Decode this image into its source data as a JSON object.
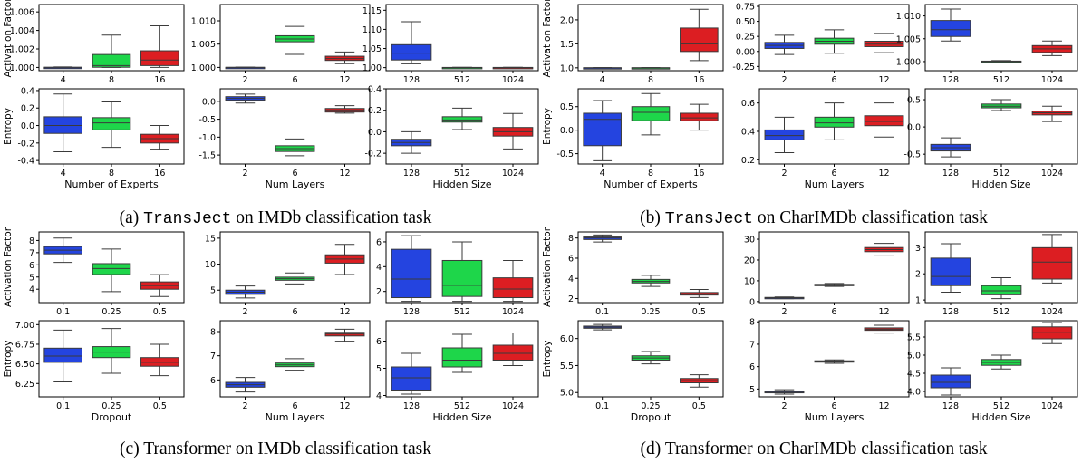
{
  "colors": {
    "c1": "#2444e0",
    "c2": "#1ed64a",
    "c3": "#dc1e22"
  },
  "captions": [
    {
      "prefix": "(a) ",
      "model": "TransJect",
      "suffix": " on IMDb classification task"
    },
    {
      "prefix": "(b) ",
      "model": "TransJect",
      "suffix": " on CharIMDb classification task"
    },
    {
      "prefix": "(c) ",
      "model": "",
      "suffix": "Transformer on IMDb classification task"
    },
    {
      "prefix": "(d) ",
      "model": "",
      "suffix": "Transformer on CharIMDb classification task"
    }
  ],
  "chart_data": [
    {
      "type": "box",
      "group": "a",
      "row": "top",
      "ylabel": "Activation Factor",
      "xlabel": "",
      "categories": [
        "4",
        "8",
        "16"
      ],
      "ylim": [
        0.99965,
        1.0068
      ],
      "yticks": [
        "1.000",
        "1.002",
        "1.004",
        "1.006"
      ],
      "boxes": [
        {
          "q1": 1.0,
          "med": 1.0,
          "q3": 1.00002,
          "lo": 1.0,
          "hi": 1.00005
        },
        {
          "q1": 1.00002,
          "med": 1.0002,
          "q3": 1.0014,
          "lo": 1.0,
          "hi": 1.0035
        },
        {
          "q1": 1.0002,
          "med": 1.0008,
          "q3": 1.0018,
          "lo": 1.0,
          "hi": 1.0045
        }
      ]
    },
    {
      "type": "box",
      "group": "a",
      "row": "top",
      "ylabel": "",
      "xlabel": "",
      "categories": [
        "2",
        "6",
        "12"
      ],
      "ylim": [
        0.9993,
        1.0135
      ],
      "yticks": [
        "1.000",
        "1.005",
        "1.010"
      ],
      "boxes": [
        {
          "q1": 1.0,
          "med": 1.0,
          "q3": 1.00002,
          "lo": 1.0,
          "hi": 1.00005
        },
        {
          "q1": 1.0055,
          "med": 1.0061,
          "q3": 1.0068,
          "lo": 1.0028,
          "hi": 1.0088
        },
        {
          "q1": 1.0015,
          "med": 1.0019,
          "q3": 1.0024,
          "lo": 1.0008,
          "hi": 1.0033
        }
      ]
    },
    {
      "type": "box",
      "group": "a",
      "row": "top",
      "ylabel": "",
      "xlabel": "",
      "categories": [
        "128",
        "512",
        "1024"
      ],
      "ylim": [
        0.992,
        1.165
      ],
      "yticks": [
        "1.00",
        "1.05",
        "1.10",
        "1.15"
      ],
      "boxes": [
        {
          "q1": 1.02,
          "med": 1.038,
          "q3": 1.06,
          "lo": 1.01,
          "hi": 1.12
        },
        {
          "q1": 1.0,
          "med": 1.0,
          "q3": 1.0005,
          "lo": 1.0,
          "hi": 1.001
        },
        {
          "q1": 1.0,
          "med": 1.0,
          "q3": 1.0005,
          "lo": 1.0,
          "hi": 1.001
        }
      ]
    },
    {
      "type": "box",
      "group": "a",
      "row": "bottom",
      "ylabel": "Entropy",
      "xlabel": "Number of Experts",
      "categories": [
        "4",
        "8",
        "16"
      ],
      "ylim": [
        -0.44,
        0.42
      ],
      "yticks": [
        "-0.4",
        "-0.2",
        "0.0",
        "0.2",
        "0.4"
      ],
      "boxes": [
        {
          "q1": -0.09,
          "med": 0.0,
          "q3": 0.1,
          "lo": -0.3,
          "hi": 0.36
        },
        {
          "q1": -0.05,
          "med": 0.03,
          "q3": 0.09,
          "lo": -0.25,
          "hi": 0.27
        },
        {
          "q1": -0.2,
          "med": -0.15,
          "q3": -0.1,
          "lo": -0.27,
          "hi": 0.0
        }
      ]
    },
    {
      "type": "box",
      "group": "a",
      "row": "bottom",
      "ylabel": "",
      "xlabel": "Num Layers",
      "categories": [
        "2",
        "6",
        "12"
      ],
      "ylim": [
        -1.75,
        0.35
      ],
      "yticks": [
        "-1.5",
        "-1.0",
        "-0.5",
        "0.0"
      ],
      "boxes": [
        {
          "q1": 0.03,
          "med": 0.08,
          "q3": 0.13,
          "lo": -0.05,
          "hi": 0.2
        },
        {
          "q1": -1.4,
          "med": -1.32,
          "q3": -1.24,
          "lo": -1.52,
          "hi": -1.05
        },
        {
          "q1": -0.3,
          "med": -0.25,
          "q3": -0.2,
          "lo": -0.33,
          "hi": -0.12
        }
      ]
    },
    {
      "type": "box",
      "group": "a",
      "row": "bottom",
      "ylabel": "",
      "xlabel": "Hidden Size",
      "categories": [
        "128",
        "512",
        "1024"
      ],
      "ylim": [
        -0.3,
        0.4
      ],
      "yticks": [
        "-0.2",
        "0.0",
        "0.2",
        "0.4"
      ],
      "boxes": [
        {
          "q1": -0.13,
          "med": -0.1,
          "q3": -0.07,
          "lo": -0.2,
          "hi": 0.0
        },
        {
          "q1": 0.09,
          "med": 0.11,
          "q3": 0.14,
          "lo": 0.02,
          "hi": 0.22
        },
        {
          "q1": -0.04,
          "med": 0.0,
          "q3": 0.04,
          "lo": -0.16,
          "hi": 0.17
        }
      ]
    },
    {
      "type": "box",
      "group": "b",
      "row": "top",
      "ylabel": "Activation Factor",
      "xlabel": "",
      "categories": [
        "4",
        "8",
        "16"
      ],
      "ylim": [
        0.94,
        2.32
      ],
      "yticks": [
        "1.0",
        "1.5",
        "2.0"
      ],
      "boxes": [
        {
          "q1": 1.0,
          "med": 1.0,
          "q3": 1.002,
          "lo": 1.0,
          "hi": 1.004
        },
        {
          "q1": 1.0,
          "med": 1.0,
          "q3": 1.002,
          "lo": 1.0,
          "hi": 1.004
        },
        {
          "q1": 1.34,
          "med": 1.5,
          "q3": 1.83,
          "lo": 1.15,
          "hi": 2.22
        }
      ]
    },
    {
      "type": "box",
      "group": "b",
      "row": "top",
      "ylabel": "",
      "xlabel": "",
      "categories": [
        "2",
        "6",
        "12"
      ],
      "ylim": [
        -0.32,
        0.78
      ],
      "yticks": [
        "-0.25",
        "0.00",
        "0.25",
        "0.50",
        "0.75"
      ],
      "boxes": [
        {
          "q1": 0.05,
          "med": 0.1,
          "q3": 0.15,
          "lo": -0.05,
          "hi": 0.27
        },
        {
          "q1": 0.12,
          "med": 0.17,
          "q3": 0.22,
          "lo": -0.03,
          "hi": 0.36
        },
        {
          "q1": 0.08,
          "med": 0.12,
          "q3": 0.17,
          "lo": -0.02,
          "hi": 0.3
        }
      ]
    },
    {
      "type": "box",
      "group": "b",
      "row": "top",
      "ylabel": "",
      "xlabel": "",
      "categories": [
        "128",
        "512",
        "1024"
      ],
      "ylim": [
        0.998,
        1.0125
      ],
      "yticks": [
        "1.000",
        "1.005",
        "1.010"
      ],
      "boxes": [
        {
          "q1": 1.0055,
          "med": 1.007,
          "q3": 1.009,
          "lo": 1.0045,
          "hi": 1.0115
        },
        {
          "q1": 1.0,
          "med": 1.0,
          "q3": 1.0001,
          "lo": 1.0,
          "hi": 1.0002
        },
        {
          "q1": 1.002,
          "med": 1.0028,
          "q3": 1.0035,
          "lo": 1.0013,
          "hi": 1.0045
        }
      ]
    },
    {
      "type": "box",
      "group": "b",
      "row": "bottom",
      "ylabel": "Entropy",
      "xlabel": "Number of Experts",
      "categories": [
        "4",
        "8",
        "16"
      ],
      "ylim": [
        -0.72,
        0.88
      ],
      "yticks": [
        "-0.5",
        "0.0",
        "0.5"
      ],
      "boxes": [
        {
          "q1": -0.33,
          "med": 0.23,
          "q3": 0.36,
          "lo": -0.65,
          "hi": 0.63
        },
        {
          "q1": 0.2,
          "med": 0.38,
          "q3": 0.5,
          "lo": -0.1,
          "hi": 0.78
        },
        {
          "q1": 0.2,
          "med": 0.26,
          "q3": 0.36,
          "lo": 0.0,
          "hi": 0.55
        }
      ]
    },
    {
      "type": "box",
      "group": "b",
      "row": "bottom",
      "ylabel": "",
      "xlabel": "Num Layers",
      "categories": [
        "2",
        "6",
        "12"
      ],
      "ylim": [
        0.17,
        0.7
      ],
      "yticks": [
        "0.2",
        "0.4",
        "0.6"
      ],
      "boxes": [
        {
          "q1": 0.34,
          "med": 0.37,
          "q3": 0.41,
          "lo": 0.25,
          "hi": 0.5
        },
        {
          "q1": 0.43,
          "med": 0.46,
          "q3": 0.5,
          "lo": 0.34,
          "hi": 0.6
        },
        {
          "q1": 0.44,
          "med": 0.47,
          "q3": 0.51,
          "lo": 0.36,
          "hi": 0.6
        }
      ]
    },
    {
      "type": "box",
      "group": "b",
      "row": "bottom",
      "ylabel": "",
      "xlabel": "Hidden Size",
      "categories": [
        "128",
        "512",
        "1024"
      ],
      "ylim": [
        -0.68,
        0.7
      ],
      "yticks": [
        "-0.5",
        "0.0",
        "0.5"
      ],
      "boxes": [
        {
          "q1": -0.44,
          "med": -0.38,
          "q3": -0.32,
          "lo": -0.55,
          "hi": -0.2
        },
        {
          "q1": 0.35,
          "med": 0.38,
          "q3": 0.42,
          "lo": 0.3,
          "hi": 0.5
        },
        {
          "q1": 0.22,
          "med": 0.26,
          "q3": 0.29,
          "lo": 0.1,
          "hi": 0.38
        }
      ]
    },
    {
      "type": "box",
      "group": "c",
      "row": "top",
      "ylabel": "Activation Factor",
      "xlabel": "",
      "categories": [
        "0.1",
        "0.25",
        "0.5"
      ],
      "ylim": [
        2.9,
        8.7
      ],
      "yticks": [
        "4",
        "5",
        "6",
        "7",
        "8"
      ],
      "boxes": [
        {
          "q1": 6.9,
          "med": 7.2,
          "q3": 7.5,
          "lo": 6.2,
          "hi": 8.2
        },
        {
          "q1": 5.2,
          "med": 5.7,
          "q3": 6.1,
          "lo": 3.8,
          "hi": 7.3
        },
        {
          "q1": 4.0,
          "med": 4.3,
          "q3": 4.6,
          "lo": 3.4,
          "hi": 5.2
        }
      ]
    },
    {
      "type": "box",
      "group": "c",
      "row": "top",
      "ylabel": "",
      "xlabel": "",
      "categories": [
        "2",
        "6",
        "12"
      ],
      "ylim": [
        2.6,
        16.2
      ],
      "yticks": [
        "5",
        "10",
        "15"
      ],
      "boxes": [
        {
          "q1": 4.2,
          "med": 4.6,
          "q3": 5.0,
          "lo": 3.5,
          "hi": 5.8
        },
        {
          "q1": 6.9,
          "med": 7.2,
          "q3": 7.5,
          "lo": 6.2,
          "hi": 8.3
        },
        {
          "q1": 10.2,
          "med": 11.0,
          "q3": 11.8,
          "lo": 8.0,
          "hi": 13.8
        }
      ]
    },
    {
      "type": "box",
      "group": "c",
      "row": "top",
      "ylabel": "",
      "xlabel": "",
      "categories": [
        "128",
        "512",
        "1024"
      ],
      "ylim": [
        1.1,
        6.8
      ],
      "yticks": [
        "2",
        "4",
        "6"
      ],
      "boxes": [
        {
          "q1": 1.5,
          "med": 3.0,
          "q3": 5.4,
          "lo": 1.2,
          "hi": 6.5
        },
        {
          "q1": 1.6,
          "med": 2.5,
          "q3": 4.5,
          "lo": 1.2,
          "hi": 6.0
        },
        {
          "q1": 1.5,
          "med": 2.2,
          "q3": 3.1,
          "lo": 1.2,
          "hi": 4.5
        }
      ]
    },
    {
      "type": "box",
      "group": "c",
      "row": "bottom",
      "ylabel": "Entropy",
      "xlabel": "Dropout",
      "categories": [
        "0.1",
        "0.25",
        "0.5"
      ],
      "ylim": [
        6.08,
        7.05
      ],
      "yticks": [
        "6.25",
        "6.50",
        "6.75",
        "7.00"
      ],
      "boxes": [
        {
          "q1": 6.52,
          "med": 6.6,
          "q3": 6.7,
          "lo": 6.27,
          "hi": 6.93
        },
        {
          "q1": 6.58,
          "med": 6.65,
          "q3": 6.72,
          "lo": 6.38,
          "hi": 6.95
        },
        {
          "q1": 6.47,
          "med": 6.52,
          "q3": 6.58,
          "lo": 6.35,
          "hi": 6.75
        }
      ]
    },
    {
      "type": "box",
      "group": "c",
      "row": "bottom",
      "ylabel": "",
      "xlabel": "Num Layers",
      "categories": [
        "2",
        "6",
        "12"
      ],
      "ylim": [
        5.3,
        8.45
      ],
      "yticks": [
        "6",
        "7",
        "8"
      ],
      "boxes": [
        {
          "q1": 5.7,
          "med": 5.8,
          "q3": 5.9,
          "lo": 5.5,
          "hi": 6.1
        },
        {
          "q1": 6.55,
          "med": 6.62,
          "q3": 6.7,
          "lo": 6.4,
          "hi": 6.88
        },
        {
          "q1": 7.82,
          "med": 7.9,
          "q3": 7.97,
          "lo": 7.6,
          "hi": 8.1
        }
      ]
    },
    {
      "type": "box",
      "group": "c",
      "row": "bottom",
      "ylabel": "",
      "xlabel": "Hidden Size",
      "categories": [
        "128",
        "512",
        "1024"
      ],
      "ylim": [
        3.95,
        6.75
      ],
      "yticks": [
        "4",
        "5",
        "6"
      ],
      "boxes": [
        {
          "q1": 4.2,
          "med": 4.65,
          "q3": 5.05,
          "lo": 4.05,
          "hi": 5.55
        },
        {
          "q1": 5.05,
          "med": 5.3,
          "q3": 5.75,
          "lo": 4.85,
          "hi": 6.25
        },
        {
          "q1": 5.3,
          "med": 5.55,
          "q3": 5.85,
          "lo": 5.1,
          "hi": 6.3
        }
      ]
    },
    {
      "type": "box",
      "group": "d",
      "row": "top",
      "ylabel": "Activation Factor",
      "xlabel": "",
      "categories": [
        "0.1",
        "0.25",
        "0.5"
      ],
      "ylim": [
        1.6,
        8.6
      ],
      "yticks": [
        "2",
        "4",
        "6",
        "8"
      ],
      "boxes": [
        {
          "q1": 7.85,
          "med": 8.0,
          "q3": 8.1,
          "lo": 7.6,
          "hi": 8.3
        },
        {
          "q1": 3.55,
          "med": 3.7,
          "q3": 3.9,
          "lo": 3.2,
          "hi": 4.3
        },
        {
          "q1": 2.35,
          "med": 2.45,
          "q3": 2.6,
          "lo": 2.1,
          "hi": 2.9
        }
      ]
    },
    {
      "type": "box",
      "group": "d",
      "row": "top",
      "ylabel": "",
      "xlabel": "",
      "categories": [
        "2",
        "6",
        "12"
      ],
      "ylim": [
        -0.5,
        33.5
      ],
      "yticks": [
        "0",
        "10",
        "20",
        "30"
      ],
      "boxes": [
        {
          "q1": 1.6,
          "med": 1.8,
          "q3": 2.0,
          "lo": 1.4,
          "hi": 2.2
        },
        {
          "q1": 7.7,
          "med": 8.0,
          "q3": 8.3,
          "lo": 7.3,
          "hi": 8.7
        },
        {
          "q1": 24.0,
          "med": 25.0,
          "q3": 26.0,
          "lo": 22.0,
          "hi": 28.0
        }
      ]
    },
    {
      "type": "box",
      "group": "d",
      "row": "top",
      "ylabel": "",
      "xlabel": "",
      "categories": [
        "128",
        "512",
        "1024"
      ],
      "ylim": [
        0.9,
        3.6
      ],
      "yticks": [
        "1",
        "2",
        "3"
      ],
      "boxes": [
        {
          "q1": 1.55,
          "med": 1.9,
          "q3": 2.6,
          "lo": 1.3,
          "hi": 3.15
        },
        {
          "q1": 1.2,
          "med": 1.35,
          "q3": 1.55,
          "lo": 1.05,
          "hi": 1.85
        },
        {
          "q1": 1.8,
          "med": 2.45,
          "q3": 3.0,
          "lo": 1.65,
          "hi": 3.5
        }
      ]
    },
    {
      "type": "box",
      "group": "d",
      "row": "bottom",
      "ylabel": "Entropy",
      "xlabel": "Dropout",
      "categories": [
        "0.1",
        "0.25",
        "0.5"
      ],
      "ylim": [
        4.92,
        6.33
      ],
      "yticks": [
        "5.0",
        "5.5",
        "6.0"
      ],
      "boxes": [
        {
          "q1": 6.19,
          "med": 6.21,
          "q3": 6.23,
          "lo": 6.16,
          "hi": 6.26
        },
        {
          "q1": 5.6,
          "med": 5.64,
          "q3": 5.68,
          "lo": 5.53,
          "hi": 5.76
        },
        {
          "q1": 5.18,
          "med": 5.22,
          "q3": 5.26,
          "lo": 5.1,
          "hi": 5.33
        }
      ]
    },
    {
      "type": "box",
      "group": "d",
      "row": "bottom",
      "ylabel": "",
      "xlabel": "Num Layers",
      "categories": [
        "2",
        "6",
        "12"
      ],
      "ylim": [
        4.65,
        8.05
      ],
      "yticks": [
        "5",
        "6",
        "7",
        "8"
      ],
      "boxes": [
        {
          "q1": 4.83,
          "med": 4.87,
          "q3": 4.91,
          "lo": 4.77,
          "hi": 4.97
        },
        {
          "q1": 6.2,
          "med": 6.23,
          "q3": 6.26,
          "lo": 6.15,
          "hi": 6.3
        },
        {
          "q1": 7.62,
          "med": 7.67,
          "q3": 7.73,
          "lo": 7.5,
          "hi": 7.85
        }
      ]
    },
    {
      "type": "box",
      "group": "d",
      "row": "bottom",
      "ylabel": "",
      "xlabel": "Hidden Size",
      "categories": [
        "128",
        "512",
        "1024"
      ],
      "ylim": [
        3.85,
        5.95
      ],
      "yticks": [
        "4.0",
        "4.5",
        "5.0",
        "5.5"
      ],
      "boxes": [
        {
          "q1": 4.1,
          "med": 4.25,
          "q3": 4.45,
          "lo": 3.9,
          "hi": 4.65
        },
        {
          "q1": 4.72,
          "med": 4.8,
          "q3": 4.88,
          "lo": 4.62,
          "hi": 5.0
        },
        {
          "q1": 5.45,
          "med": 5.62,
          "q3": 5.78,
          "lo": 5.32,
          "hi": 5.9
        }
      ]
    }
  ]
}
